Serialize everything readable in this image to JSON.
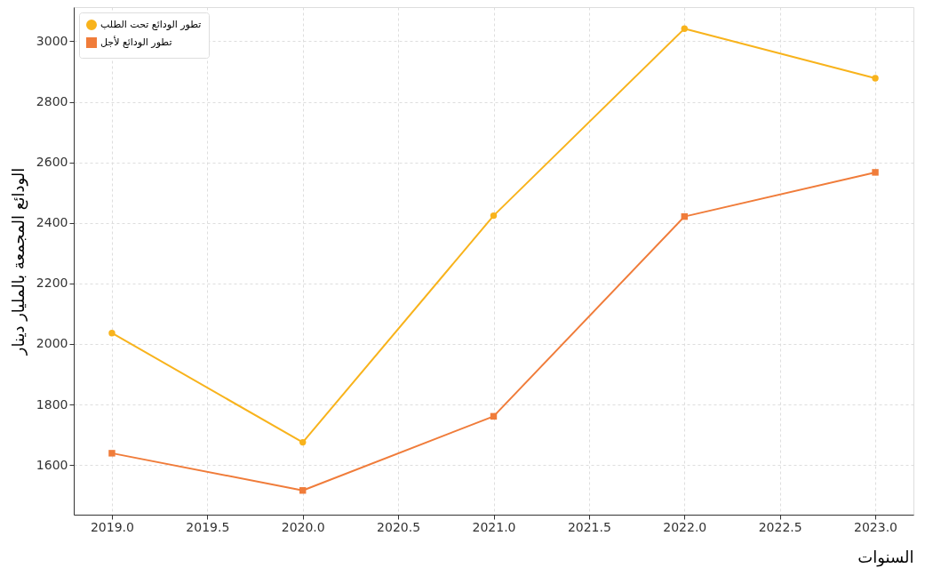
{
  "chart_data": {
    "type": "line",
    "xlabel": "السنوات",
    "ylabel": "الودائع المجمعة  بالمليار دينار",
    "x": [
      2019,
      2020,
      2021,
      2022,
      2023
    ],
    "series": [
      {
        "name": "تطور الودائع تحت الطلب",
        "color": "#f8b31c",
        "marker": "circle",
        "values": [
          2036,
          1675,
          2424,
          3042,
          2878
        ]
      },
      {
        "name": "تطور الودائع لأجل",
        "color": "#f07c3a",
        "marker": "square",
        "values": [
          1639,
          1516,
          1761,
          2421,
          2567
        ]
      }
    ],
    "xlim": [
      2018.8,
      2023.2
    ],
    "xticks": [
      {
        "value": 2019,
        "label": "2019.0"
      },
      {
        "value": 2019.5,
        "label": "2019.5"
      },
      {
        "value": 2020,
        "label": "2020.0"
      },
      {
        "value": 2020.5,
        "label": "2020.5"
      },
      {
        "value": 2021,
        "label": "2021.0"
      },
      {
        "value": 2021.5,
        "label": "2021.5"
      },
      {
        "value": 2022,
        "label": "2022.0"
      },
      {
        "value": 2022.5,
        "label": "2022.5"
      },
      {
        "value": 2023,
        "label": "2023.0"
      }
    ],
    "ylim": [
      1436,
      3113
    ],
    "yticks": [
      1600,
      1800,
      2000,
      2200,
      2400,
      2600,
      2800,
      3000
    ],
    "grid": true,
    "legend": "top left",
    "line_style": "solid"
  }
}
